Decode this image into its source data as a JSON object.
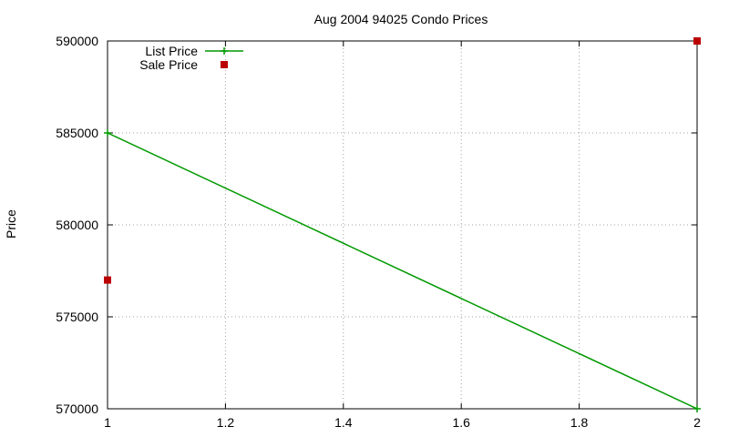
{
  "chart_data": {
    "type": "line",
    "title": "Aug 2004 94025 Condo Prices",
    "xlabel": "",
    "ylabel": "Price",
    "xlim": [
      1,
      2
    ],
    "ylim": [
      570000,
      590000
    ],
    "x_ticks": [
      "1",
      "1.2",
      "1.4",
      "1.6",
      "1.8",
      "2"
    ],
    "y_ticks": [
      "570000",
      "575000",
      "580000",
      "585000",
      "590000"
    ],
    "grid": true,
    "legend_position": "top-left",
    "series": [
      {
        "name": "List Price",
        "style": "linespoints",
        "marker": "plus",
        "color": "#009900",
        "points": [
          {
            "x": 1,
            "y": 585000
          },
          {
            "x": 2,
            "y": 570000
          }
        ]
      },
      {
        "name": "Sale Price",
        "style": "points",
        "marker": "square",
        "color": "#bb0000",
        "points": [
          {
            "x": 1,
            "y": 577000
          },
          {
            "x": 2,
            "y": 590000
          }
        ]
      }
    ]
  }
}
